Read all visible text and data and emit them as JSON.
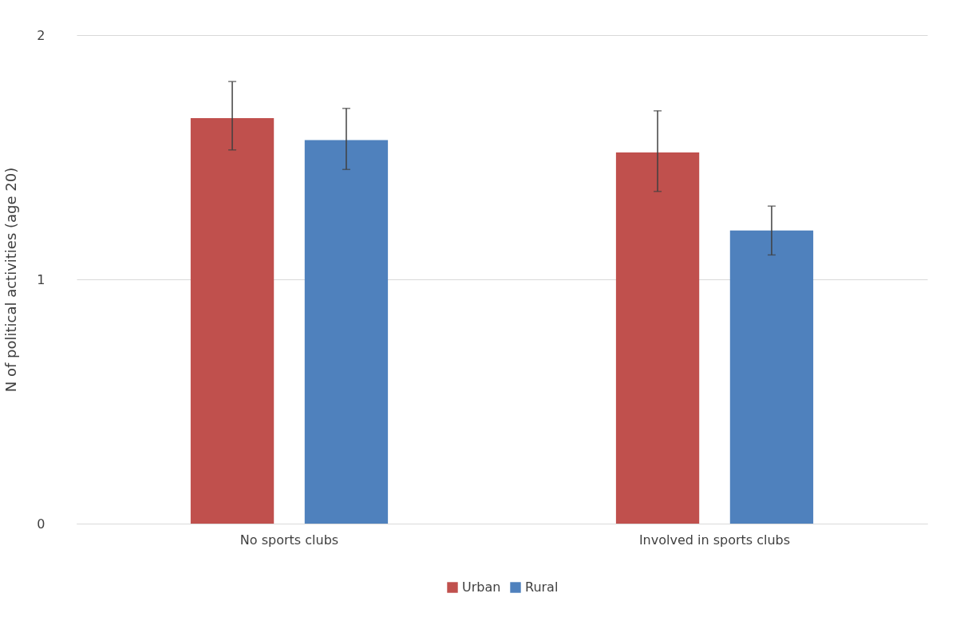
{
  "chart_data": {
    "type": "bar",
    "ylabel": "N of political activities (age 20)",
    "categories": [
      "No sports clubs",
      "Involved in sports clubs"
    ],
    "series": [
      {
        "name": "Urban",
        "color": "#c0504d",
        "values": [
          1.66,
          1.52
        ],
        "errors": [
          [
            1.53,
            1.81
          ],
          [
            1.36,
            1.69
          ]
        ]
      },
      {
        "name": "Rural",
        "color": "#4f81bd",
        "values": [
          1.57,
          1.2
        ],
        "errors": [
          [
            1.45,
            1.7
          ],
          [
            1.1,
            1.3
          ]
        ]
      }
    ],
    "ylim": [
      0,
      2
    ],
    "yticks": [
      {
        "value": 0,
        "label": "0"
      },
      {
        "value": 1,
        "label": "1"
      },
      {
        "value": 2,
        "label": "2"
      }
    ],
    "grid": "y",
    "legend": "bottom"
  }
}
